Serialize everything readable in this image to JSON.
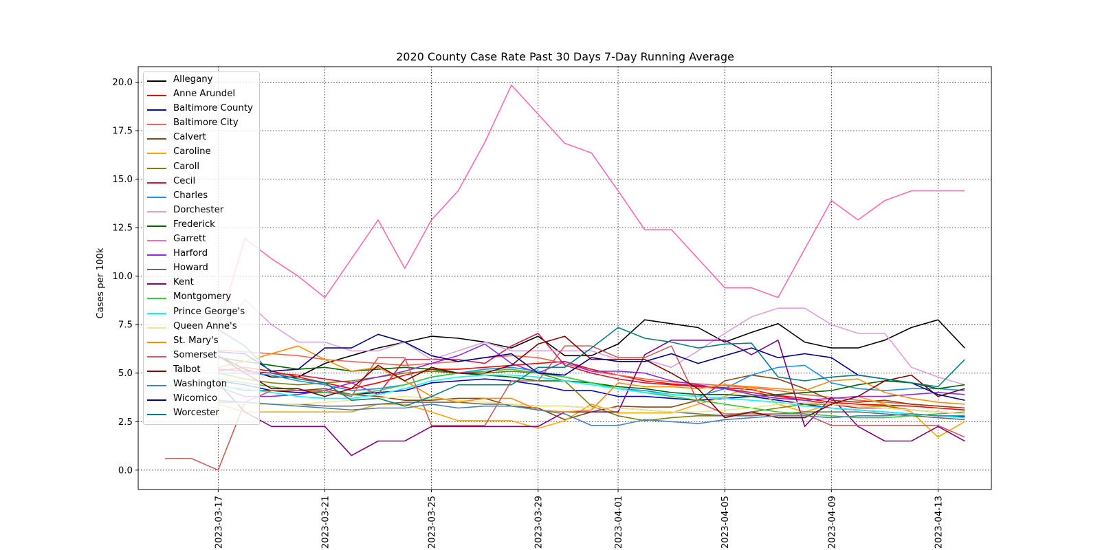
{
  "chart_data": {
    "type": "line",
    "title": "2020 County Case Rate  Past 30 Days 7-Day Running Average",
    "xlabel": "",
    "ylabel": "Cases per 100k",
    "ylim": [
      -1.0,
      20.8
    ],
    "xlim": [
      "2023-03-14",
      "2023-04-15"
    ],
    "yticks": [
      0.0,
      2.5,
      5.0,
      7.5,
      10.0,
      12.5,
      15.0,
      17.5,
      20.0
    ],
    "ytick_labels": [
      "0.0",
      "2.5",
      "5.0",
      "7.5",
      "10.0",
      "12.5",
      "15.0",
      "17.5",
      "20.0"
    ],
    "xtick_labels": [
      "2023-03-17",
      "2023-03-21",
      "2023-03-25",
      "2023-03-29",
      "2023-04-01",
      "2023-04-05",
      "2023-04-09",
      "2023-04-13"
    ],
    "grid": true,
    "legend_position": "top-left",
    "x": [
      "2023-03-15",
      "2023-03-16",
      "2023-03-17",
      "2023-03-18",
      "2023-03-19",
      "2023-03-20",
      "2023-03-21",
      "2023-03-22",
      "2023-03-23",
      "2023-03-24",
      "2023-03-25",
      "2023-03-26",
      "2023-03-27",
      "2023-03-28",
      "2023-03-29",
      "2023-03-30",
      "2023-03-31",
      "2023-04-01",
      "2023-04-02",
      "2023-04-03",
      "2023-04-04",
      "2023-04-05",
      "2023-04-06",
      "2023-04-07",
      "2023-04-08",
      "2023-04-09",
      "2023-04-10",
      "2023-04-11",
      "2023-04-12",
      "2023-04-13",
      "2023-04-14"
    ],
    "series": [
      {
        "name": "Allegany",
        "color": "#000000",
        "values": [
          null,
          null,
          5.9,
          5.2,
          4.8,
          4.8,
          5.5,
          5.9,
          6.3,
          6.6,
          6.9,
          6.8,
          6.6,
          6.3,
          6.9,
          5.9,
          5.9,
          6.5,
          7.75,
          7.55,
          7.35,
          6.6,
          7.1,
          7.55,
          6.6,
          6.3,
          6.3,
          6.7,
          7.35,
          7.75,
          6.3
        ]
      },
      {
        "name": "Anne Arundel",
        "color": "#ff0000",
        "values": [
          null,
          null,
          5.1,
          5.3,
          5.1,
          4.8,
          4.5,
          4.2,
          4.5,
          4.9,
          5.2,
          5.2,
          5.3,
          5.4,
          5.5,
          5.6,
          5.2,
          4.9,
          4.6,
          4.45,
          4.35,
          4.25,
          4.15,
          3.85,
          3.7,
          3.5,
          3.4,
          3.35,
          3.3,
          3.2,
          3.1
        ]
      },
      {
        "name": "Baltimore County",
        "color": "#0000cd",
        "values": [
          null,
          null,
          4.6,
          4.4,
          4.1,
          4.0,
          4.0,
          3.9,
          4.0,
          4.1,
          4.5,
          4.6,
          4.7,
          4.6,
          4.4,
          4.1,
          4.1,
          3.8,
          3.8,
          3.7,
          3.6,
          3.7,
          3.8,
          3.6,
          3.4,
          3.2,
          3.1,
          3.0,
          2.9,
          2.8,
          2.75
        ]
      },
      {
        "name": "Baltimore City",
        "color": "#ff6347",
        "values": [
          null,
          null,
          6.2,
          6.1,
          6.0,
          5.9,
          5.7,
          5.6,
          5.5,
          5.4,
          5.5,
          5.6,
          5.8,
          5.9,
          5.8,
          5.5,
          5.1,
          4.9,
          4.7,
          4.55,
          4.45,
          4.35,
          4.25,
          4.1,
          3.9,
          3.75,
          3.6,
          3.5,
          3.4,
          3.3,
          3.2
        ]
      },
      {
        "name": "Calvert",
        "color": "#8b4513",
        "values": [
          null,
          null,
          4.4,
          4.1,
          4.1,
          4.1,
          4.2,
          3.9,
          3.8,
          3.6,
          3.6,
          3.7,
          3.7,
          3.3,
          3.2,
          2.6,
          3.0,
          3.3,
          3.25,
          3.25,
          3.6,
          4.6,
          4.9,
          4.7,
          4.2,
          3.6,
          3.5,
          3.6,
          3.4,
          3.3,
          3.2
        ]
      },
      {
        "name": "Caroline",
        "color": "#ffa500",
        "values": [
          null,
          null,
          3.4,
          3.0,
          3.0,
          3.0,
          3.0,
          3.0,
          3.4,
          3.4,
          3.0,
          2.55,
          2.55,
          2.55,
          2.15,
          2.55,
          3.4,
          2.95,
          2.95,
          2.95,
          3.4,
          3.8,
          4.3,
          3.4,
          3.0,
          3.4,
          3.8,
          3.4,
          3.0,
          1.7,
          2.5
        ]
      },
      {
        "name": "Caroll",
        "color": "#808000",
        "values": [
          null,
          null,
          5.0,
          4.7,
          4.5,
          4.4,
          4.5,
          4.6,
          4.8,
          5.0,
          5.1,
          5.0,
          5.0,
          5.1,
          5.0,
          4.6,
          3.3,
          2.8,
          2.55,
          2.7,
          2.8,
          2.8,
          3.0,
          3.2,
          3.4,
          3.4,
          3.3,
          3.3,
          3.1,
          3.0,
          2.9
        ]
      },
      {
        "name": "Cecil",
        "color": "#dc143c",
        "values": [
          null,
          null,
          5.2,
          5.1,
          5.0,
          4.9,
          4.7,
          4.5,
          3.9,
          5.7,
          5.7,
          5.7,
          5.5,
          6.4,
          7.05,
          5.4,
          5.0,
          4.7,
          4.5,
          4.4,
          4.3,
          4.2,
          4.0,
          3.8,
          3.6,
          3.4,
          3.2,
          3.2,
          3.1,
          3.0,
          2.9
        ]
      },
      {
        "name": "Charles",
        "color": "#1e90ff",
        "values": [
          null,
          null,
          5.0,
          5.0,
          4.9,
          4.6,
          4.4,
          4.1,
          4.2,
          4.4,
          4.8,
          5.0,
          5.2,
          5.3,
          5.1,
          4.8,
          4.5,
          4.2,
          4.1,
          3.9,
          3.8,
          4.2,
          4.9,
          5.3,
          5.4,
          4.5,
          4.2,
          4.1,
          4.2,
          4.2,
          4.1
        ]
      },
      {
        "name": "Dorchester",
        "color": "#dda0dd",
        "values": [
          null,
          null,
          6.7,
          8.8,
          7.5,
          6.6,
          6.6,
          6.15,
          6.15,
          6.6,
          5.7,
          6.15,
          6.6,
          6.15,
          6.15,
          6.15,
          6.15,
          5.7,
          5.7,
          5.3,
          6.15,
          7.05,
          7.9,
          8.35,
          8.35,
          7.5,
          7.05,
          7.05,
          5.3,
          4.8,
          4.4
        ]
      },
      {
        "name": "Frederick",
        "color": "#006400",
        "values": [
          null,
          null,
          5.8,
          5.6,
          5.4,
          5.2,
          5.3,
          5.1,
          5.2,
          5.3,
          5.2,
          5.0,
          4.9,
          4.8,
          4.6,
          4.6,
          4.5,
          4.3,
          4.2,
          4.0,
          3.9,
          3.9,
          3.8,
          3.9,
          4.0,
          4.1,
          4.4,
          4.6,
          4.5,
          4.2,
          4.4
        ]
      },
      {
        "name": "Garrett",
        "color": "#ff69b4",
        "values": [
          null,
          null,
          7.3,
          11.95,
          10.9,
          10.0,
          8.9,
          10.9,
          12.9,
          10.4,
          12.9,
          14.4,
          16.9,
          19.85,
          18.35,
          16.85,
          16.35,
          14.4,
          12.4,
          12.4,
          10.9,
          9.4,
          9.4,
          8.9,
          11.4,
          13.9,
          12.9,
          13.9,
          14.4,
          14.4,
          14.4
        ]
      },
      {
        "name": "Harford",
        "color": "#8a2be2",
        "values": [
          null,
          null,
          4.3,
          3.8,
          3.8,
          3.9,
          4.1,
          4.5,
          4.8,
          5.1,
          5.5,
          5.9,
          6.5,
          5.5,
          5.0,
          5.6,
          5.1,
          5.1,
          5.0,
          4.6,
          4.4,
          4.2,
          3.9,
          3.7,
          3.6,
          3.7,
          3.8,
          3.8,
          3.9,
          4.0,
          3.9
        ]
      },
      {
        "name": "Howard",
        "color": "#696969",
        "values": [
          null,
          null,
          3.6,
          3.5,
          3.4,
          3.4,
          3.3,
          3.3,
          3.4,
          3.5,
          3.5,
          3.5,
          3.4,
          3.4,
          3.3,
          3.3,
          3.2,
          3.2,
          3.1,
          3.0,
          2.9,
          2.8,
          2.8,
          2.9,
          3.0,
          3.0,
          3.0,
          2.9,
          2.8,
          2.7,
          2.6
        ]
      },
      {
        "name": "Kent",
        "color": "#800080",
        "values": [
          null,
          null,
          4.5,
          3.0,
          2.25,
          2.25,
          2.25,
          0.75,
          1.5,
          1.5,
          2.25,
          2.25,
          2.25,
          2.25,
          2.25,
          3.0,
          3.0,
          3.0,
          5.95,
          6.7,
          6.7,
          6.7,
          5.95,
          6.7,
          2.25,
          3.75,
          2.25,
          1.5,
          1.5,
          2.25,
          1.5
        ]
      },
      {
        "name": "Montgomery",
        "color": "#32cd32",
        "values": [
          null,
          null,
          4.7,
          4.5,
          4.3,
          4.1,
          4.0,
          3.9,
          4.1,
          4.4,
          4.8,
          5.0,
          5.1,
          5.2,
          5.0,
          4.8,
          4.5,
          4.2,
          4.0,
          3.8,
          3.6,
          3.4,
          3.2,
          3.0,
          2.9,
          2.8,
          2.7,
          2.7,
          2.8,
          2.9,
          3.0
        ]
      },
      {
        "name": "Prince George's",
        "color": "#00ffff",
        "values": [
          null,
          null,
          4.3,
          4.2,
          4.0,
          3.8,
          3.7,
          3.7,
          3.9,
          4.2,
          4.6,
          4.8,
          4.9,
          4.9,
          4.8,
          4.6,
          4.4,
          4.2,
          4.0,
          3.9,
          3.8,
          3.7,
          3.6,
          3.5,
          3.3,
          3.2,
          3.1,
          3.0,
          2.9,
          2.8,
          2.7
        ]
      },
      {
        "name": "Queen Anne's",
        "color": "#f0e68c",
        "values": [
          null,
          null,
          3.5,
          3.4,
          3.4,
          3.4,
          3.5,
          3.6,
          3.7,
          3.8,
          3.7,
          3.6,
          3.5,
          3.4,
          3.3,
          3.3,
          3.2,
          3.2,
          3.1,
          3.0,
          3.0,
          3.1,
          3.2,
          3.4,
          3.5,
          3.4,
          3.3,
          3.2,
          3.1,
          3.0,
          2.9
        ]
      },
      {
        "name": "St. Mary's",
        "color": "#ff8c00",
        "values": [
          null,
          null,
          5.3,
          5.6,
          6.0,
          6.4,
          5.7,
          5.1,
          5.3,
          4.6,
          3.8,
          3.5,
          3.7,
          3.7,
          3.1,
          3.0,
          3.1,
          4.5,
          4.3,
          4.3,
          4.2,
          4.4,
          4.3,
          4.2,
          4.1,
          4.6,
          4.7,
          4.0,
          3.7,
          3.5,
          3.4
        ]
      },
      {
        "name": "Somerset",
        "color": "#cd5c5c",
        "values": [
          0.6,
          0.6,
          0.0,
          3.5,
          4.1,
          4.1,
          4.1,
          3.8,
          5.8,
          5.8,
          2.3,
          2.3,
          2.3,
          4.6,
          4.6,
          6.4,
          6.4,
          5.8,
          5.8,
          6.4,
          3.5,
          2.9,
          2.9,
          2.9,
          2.9,
          2.3,
          2.3,
          2.3,
          2.3,
          2.3,
          1.7
        ]
      },
      {
        "name": "Talbot",
        "color": "#800000",
        "values": [
          null,
          null,
          5.9,
          5.0,
          4.2,
          4.2,
          3.8,
          4.2,
          5.4,
          4.6,
          5.3,
          5.0,
          5.0,
          5.4,
          6.5,
          6.9,
          5.7,
          5.7,
          5.7,
          5.0,
          4.2,
          2.7,
          3.0,
          2.7,
          2.7,
          3.4,
          3.8,
          4.6,
          4.9,
          3.8,
          4.2
        ]
      },
      {
        "name": "Washington",
        "color": "#4682b4",
        "values": [
          null,
          null,
          3.5,
          3.5,
          3.4,
          3.3,
          3.2,
          3.1,
          3.2,
          3.2,
          3.4,
          3.2,
          3.3,
          3.3,
          3.1,
          2.9,
          2.3,
          2.3,
          2.6,
          2.5,
          2.4,
          2.6,
          2.7,
          2.8,
          2.8,
          2.7,
          2.8,
          2.8,
          2.9,
          2.8,
          2.8
        ]
      },
      {
        "name": "Wicomico",
        "color": "#00008b",
        "values": [
          null,
          null,
          6.1,
          6.0,
          5.1,
          5.2,
          6.3,
          6.3,
          7.0,
          6.6,
          5.9,
          5.6,
          5.8,
          6.0,
          5.0,
          4.9,
          5.8,
          5.6,
          5.6,
          6.0,
          5.5,
          5.9,
          6.3,
          5.8,
          6.0,
          5.8,
          4.9,
          4.7,
          4.5,
          3.9,
          3.6
        ]
      },
      {
        "name": "Worcester",
        "color": "#008080",
        "values": [
          null,
          null,
          7.25,
          6.4,
          5.0,
          4.7,
          4.5,
          3.6,
          3.7,
          3.3,
          3.8,
          4.4,
          4.4,
          4.4,
          5.3,
          5.3,
          6.3,
          7.35,
          6.8,
          6.6,
          6.3,
          6.5,
          6.55,
          4.8,
          4.6,
          4.8,
          4.9,
          4.7,
          4.5,
          4.3,
          5.7
        ]
      }
    ]
  }
}
